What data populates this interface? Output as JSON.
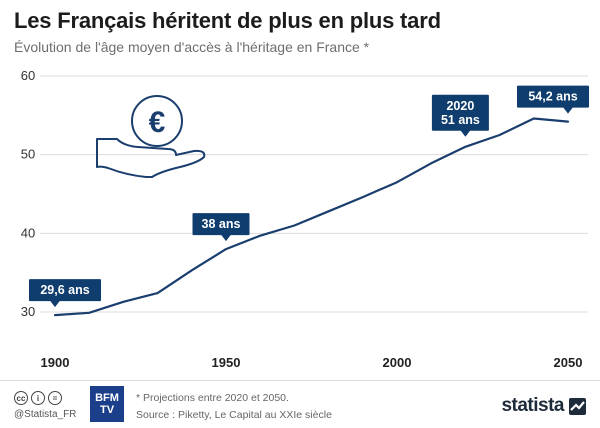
{
  "header": {
    "title": "Les Français héritent de plus en plus tard",
    "subtitle": "Évolution de l'âge moyen d'accès à l'héritage en France *"
  },
  "colors": {
    "line": "#1a3e6e",
    "label_bg": "#0f3d6e",
    "grid": "#dcdcdc",
    "icon": "#1a3e6e"
  },
  "icon": "euro-coin-in-hand-icon",
  "chart_data": {
    "type": "line",
    "title": "Les Français héritent de plus en plus tard",
    "subtitle": "Évolution de l'âge moyen d'accès à l'héritage en France *",
    "xlabel": "",
    "ylabel": "",
    "xlim": [
      1900,
      2050
    ],
    "ylim": [
      30,
      60
    ],
    "x_ticks": [
      "1900",
      "1950",
      "2000",
      "2050"
    ],
    "y_ticks": [
      "30",
      "40",
      "50",
      "60"
    ],
    "grid": true,
    "legend": "none",
    "series": [
      {
        "x": [
          1900,
          1910,
          1920,
          1930,
          1940,
          1950,
          1960,
          1970,
          1980,
          1990,
          2000,
          2010,
          2020,
          2030,
          2040,
          2050
        ],
        "values": [
          29.6,
          29.9,
          31.3,
          32.4,
          35.3,
          38.0,
          39.7,
          41.0,
          42.8,
          44.6,
          46.5,
          48.9,
          51.0,
          52.5,
          54.6,
          54.2
        ]
      }
    ],
    "annotations": [
      {
        "x": 1900,
        "y": 29.6,
        "lines": [
          "29,6 ans"
        ],
        "dx": 10,
        "dy": -14
      },
      {
        "x": 1950,
        "y": 38.0,
        "lines": [
          "38 ans"
        ],
        "dx": -5,
        "dy": -14
      },
      {
        "x": 2020,
        "y": 51.0,
        "lines": [
          "2020",
          "51 ans"
        ],
        "dx": -5,
        "dy": -16
      },
      {
        "x": 2050,
        "y": 54.2,
        "lines": [
          "54,2 ans"
        ],
        "dx": -15,
        "dy": -14
      }
    ]
  },
  "footer": {
    "cc_icons": [
      "cc",
      "i",
      "="
    ],
    "handle": "@Statista_FR",
    "partner_line1": "BFM",
    "partner_line2": "TV",
    "note": "* Projections entre 2020 et 2050.",
    "source": "Source : Piketty, Le Capital au XXIe siècle",
    "brand": "statista"
  }
}
